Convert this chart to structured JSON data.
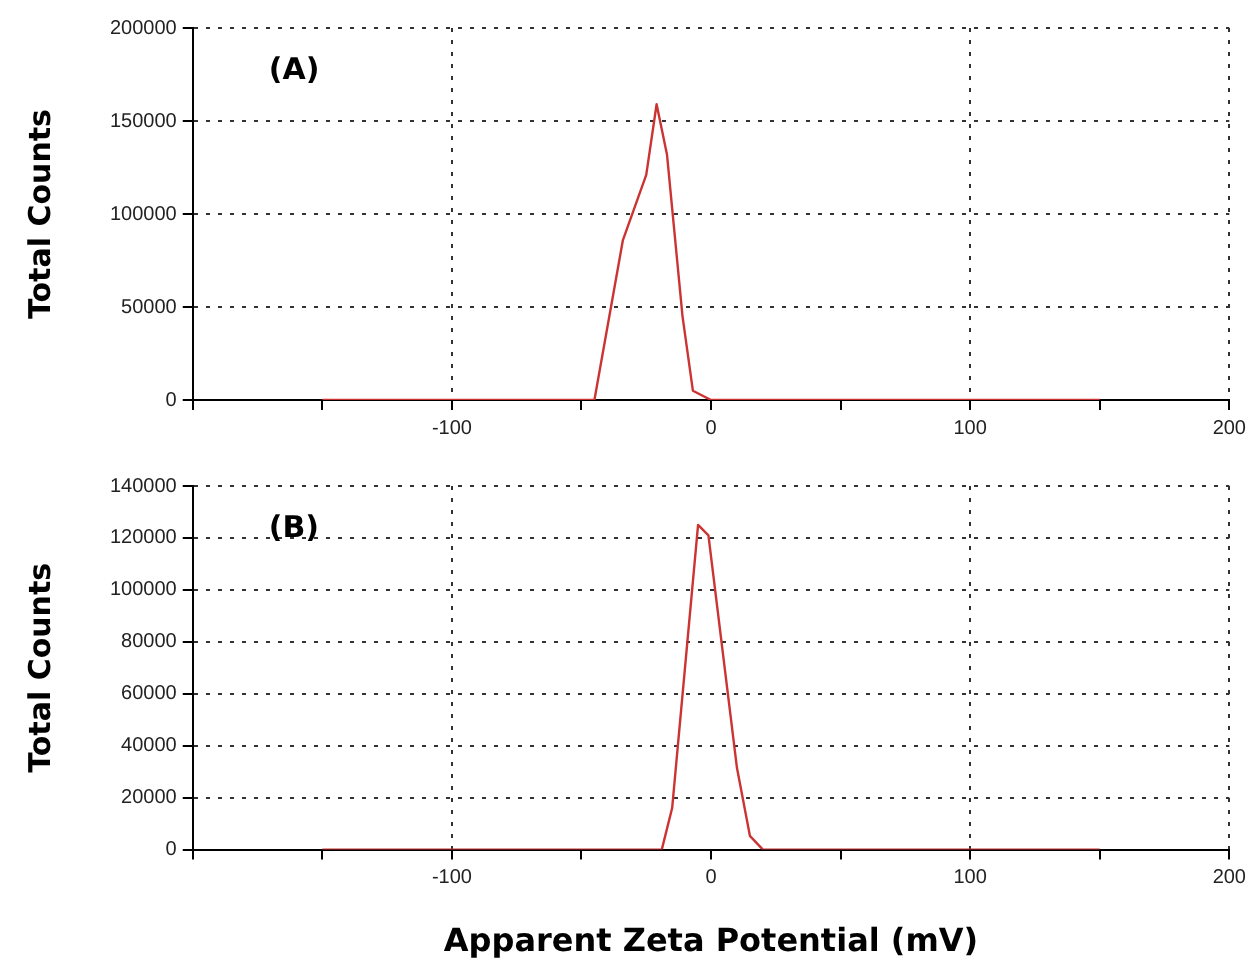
{
  "chart_data": [
    {
      "type": "line",
      "ylabel": "Total Counts",
      "annotations": [
        "(A)"
      ],
      "grid": true,
      "legend": false,
      "marker": "none",
      "line_style": "solid",
      "xlim": [
        -200,
        200
      ],
      "xticks": [
        {
          "value": -200,
          "label": null
        },
        {
          "value": -150,
          "label": null
        },
        -100,
        {
          "value": -50,
          "label": null
        },
        0,
        {
          "value": 50,
          "label": null
        },
        100,
        {
          "value": 150,
          "label": null
        },
        200
      ],
      "ylim": [
        0,
        200000
      ],
      "yticks": [
        0,
        50000,
        100000,
        150000,
        200000
      ],
      "series": [
        {
          "color": "#cc3333",
          "x": [
            -150,
            -45,
            -34,
            -25,
            -21,
            -17,
            -11,
            -7,
            0,
            150
          ],
          "values": [
            0,
            0,
            86000,
            121000,
            159000,
            132000,
            45000,
            5000,
            0,
            0
          ]
        }
      ]
    },
    {
      "type": "line",
      "ylabel": "Total Counts",
      "xlabel": "Apparent Zeta Potential (mV)",
      "annotations": [
        "(B)"
      ],
      "grid": true,
      "legend": false,
      "marker": "none",
      "line_style": "solid",
      "xlim": [
        -200,
        200
      ],
      "xticks": [
        {
          "value": -200,
          "label": null
        },
        {
          "value": -150,
          "label": null
        },
        -100,
        {
          "value": -50,
          "label": null
        },
        0,
        {
          "value": 50,
          "label": null
        },
        100,
        {
          "value": 150,
          "label": null
        },
        200
      ],
      "ylim": [
        0,
        140000
      ],
      "yticks": [
        0,
        20000,
        40000,
        60000,
        80000,
        100000,
        120000,
        140000
      ],
      "series": [
        {
          "color": "#cc3333",
          "x": [
            -150,
            -19,
            -15,
            -5,
            -1,
            10,
            15,
            20,
            150
          ],
          "values": [
            0,
            0,
            16000,
            125000,
            121000,
            31500,
            5300,
            0,
            0
          ]
        }
      ]
    }
  ]
}
